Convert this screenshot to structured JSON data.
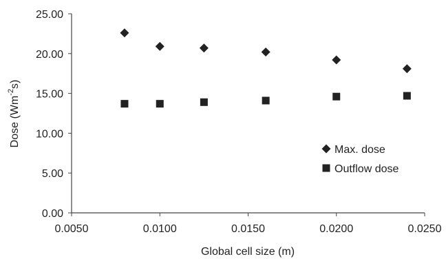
{
  "chart_data": {
    "type": "scatter",
    "xlabel": "Global cell size (m)",
    "ylabel": "Dose (Wm-2s)",
    "ylabel_parts": {
      "base": "Dose (Wm",
      "sup": "-2",
      "tail": "s)"
    },
    "xlim": [
      0.005,
      0.025
    ],
    "ylim": [
      0,
      25
    ],
    "x_ticks": [
      0.005,
      0.01,
      0.015,
      0.02,
      0.025
    ],
    "x_tick_labels": [
      "0.0050",
      "0.0100",
      "0.0150",
      "0.0200",
      "0.0250"
    ],
    "y_ticks": [
      0,
      5,
      10,
      15,
      20,
      25
    ],
    "y_tick_labels": [
      "0.00",
      "5.00",
      "10.00",
      "15.00",
      "20.00",
      "25.00"
    ],
    "grid": false,
    "legend_position": "inside-right",
    "series": [
      {
        "name": "Max. dose",
        "marker": "diamond",
        "color": "#222222",
        "x": [
          0.008,
          0.01,
          0.0125,
          0.016,
          0.02,
          0.024
        ],
        "y": [
          22.6,
          20.9,
          20.7,
          20.2,
          19.2,
          18.1
        ]
      },
      {
        "name": "Outflow dose",
        "marker": "square",
        "color": "#222222",
        "x": [
          0.008,
          0.01,
          0.0125,
          0.016,
          0.02,
          0.024
        ],
        "y": [
          13.7,
          13.7,
          13.9,
          14.1,
          14.6,
          14.7
        ]
      }
    ]
  }
}
